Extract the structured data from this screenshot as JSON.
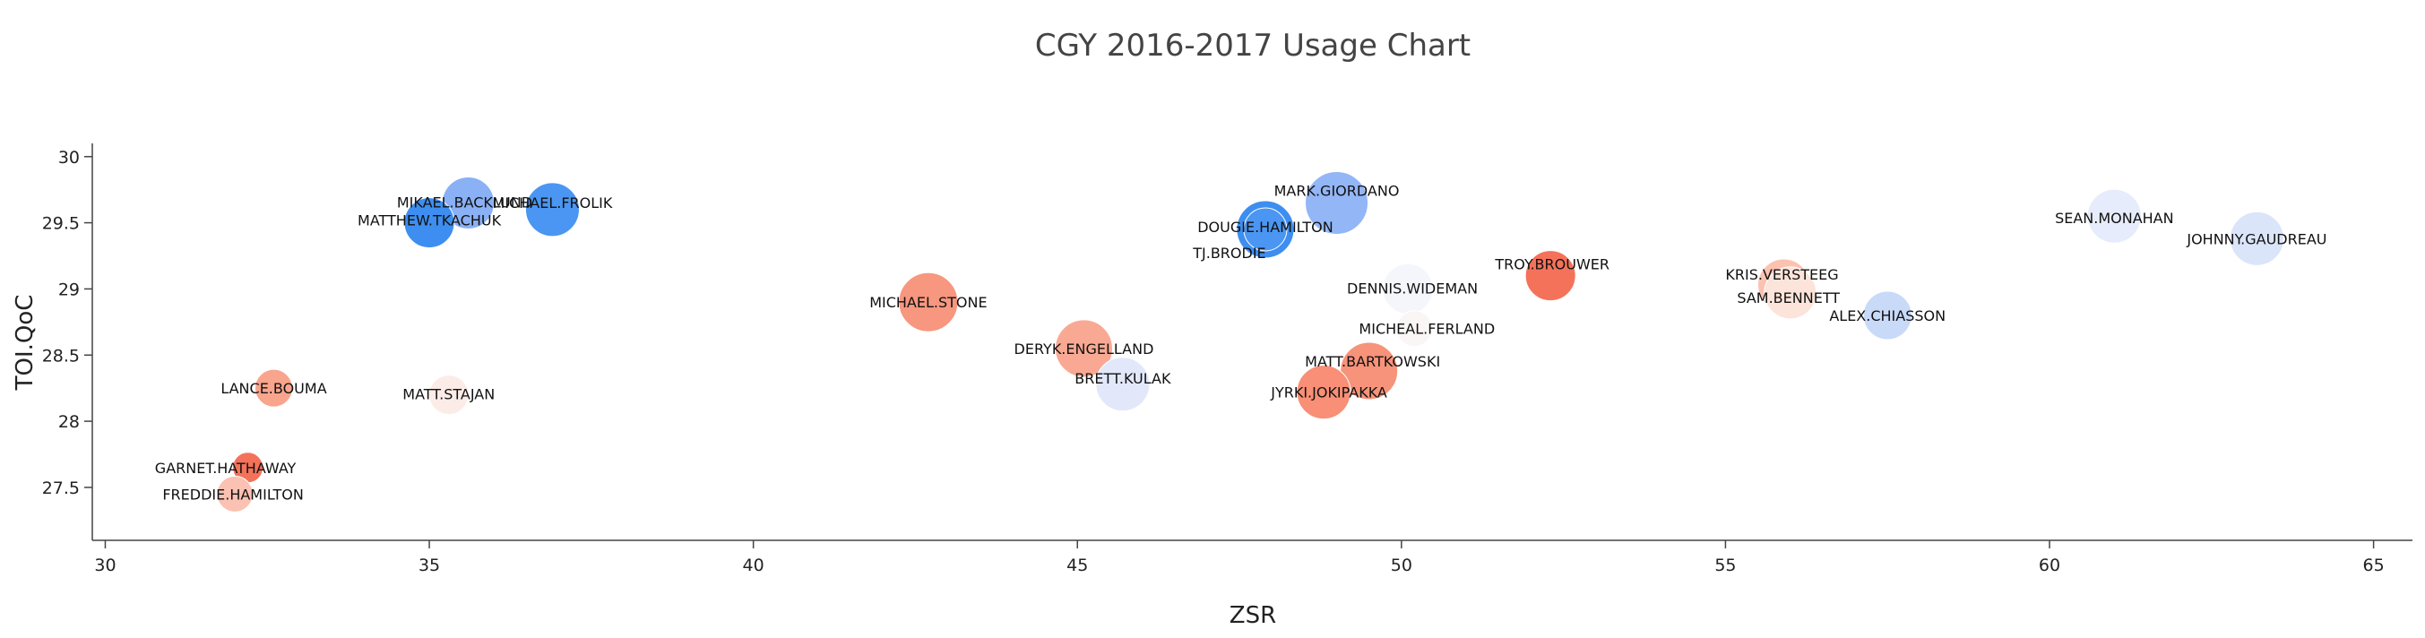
{
  "chart_data": {
    "type": "scatter",
    "title": "CGY 2016-2017 Usage Chart",
    "xlabel": "ZSR",
    "ylabel": "TOI.QoC",
    "xlim": [
      29.8,
      65.6
    ],
    "ylim": [
      27.1,
      30.1
    ],
    "xticks": [
      30,
      35,
      40,
      45,
      50,
      55,
      60,
      65
    ],
    "yticks": [
      27.5,
      28,
      28.5,
      29,
      29.5,
      30
    ],
    "grid": false,
    "legend": "none",
    "points": [
      {
        "name": "MIKAEL.BACKLUND",
        "x": 35.6,
        "y": 29.65,
        "color": "#8ab0f5"
      },
      {
        "name": "MATTHEW.TKACHUK",
        "x": 35.0,
        "y": 29.5,
        "color": "#3d8ef0"
      },
      {
        "name": "MICHAEL.FROLIK",
        "x": 36.9,
        "y": 29.6,
        "color": "#4a96f2"
      },
      {
        "name": "MARK.GIORDANO",
        "x": 49.0,
        "y": 29.65,
        "color": "#93b6f6"
      },
      {
        "name": "DOUGIE.HAMILTON",
        "x": 47.9,
        "y": 29.45,
        "color": "#3d8ef0"
      },
      {
        "name": "TJ.BRODIE",
        "x": 47.9,
        "y": 29.45,
        "color": "#4a96f2"
      },
      {
        "name": "SEAN.MONAHAN",
        "x": 61.0,
        "y": 29.55,
        "color": "#e6ecfb"
      },
      {
        "name": "JOHNNY.GAUDREAU",
        "x": 63.2,
        "y": 29.38,
        "color": "#dbe5fa"
      },
      {
        "name": "DENNIS.WIDEMAN",
        "x": 50.1,
        "y": 29.0,
        "color": "#f4f6fc"
      },
      {
        "name": "TROY.BROUWER",
        "x": 52.3,
        "y": 29.1,
        "color": "#f4725a"
      },
      {
        "name": "KRIS.VERSTEEG",
        "x": 55.9,
        "y": 29.03,
        "color": "#fbc2b0"
      },
      {
        "name": "SAM.BENNETT",
        "x": 56.0,
        "y": 28.97,
        "color": "#fce4da"
      },
      {
        "name": "ALEX.CHIASSON",
        "x": 57.5,
        "y": 28.8,
        "color": "#c9d9f8"
      },
      {
        "name": "MICHAEL.STONE",
        "x": 42.7,
        "y": 28.9,
        "color": "#f7977f"
      },
      {
        "name": "MICHEAL.FERLAND",
        "x": 50.2,
        "y": 28.7,
        "color": "#fbf6f6"
      },
      {
        "name": "DERYK.ENGELLAND",
        "x": 45.1,
        "y": 28.55,
        "color": "#f9a993"
      },
      {
        "name": "BRETT.KULAK",
        "x": 45.7,
        "y": 28.28,
        "color": "#e2e8fa"
      },
      {
        "name": "MATT.BARTKOWSKI",
        "x": 49.5,
        "y": 28.38,
        "color": "#f7937a"
      },
      {
        "name": "JYRKI.JOKIPAKKA",
        "x": 48.8,
        "y": 28.22,
        "color": "#f88f76"
      },
      {
        "name": "LANCE.BOUMA",
        "x": 32.6,
        "y": 28.25,
        "color": "#f9a48d"
      },
      {
        "name": "MATT.STAJAN",
        "x": 35.3,
        "y": 28.2,
        "color": "#fcece8"
      },
      {
        "name": "GARNET.HATHAWAY",
        "x": 32.2,
        "y": 27.65,
        "color": "#f4725a"
      },
      {
        "name": "FREDDIE.HAMILTON",
        "x": 32.0,
        "y": 27.45,
        "color": "#fbc1b2"
      }
    ]
  }
}
